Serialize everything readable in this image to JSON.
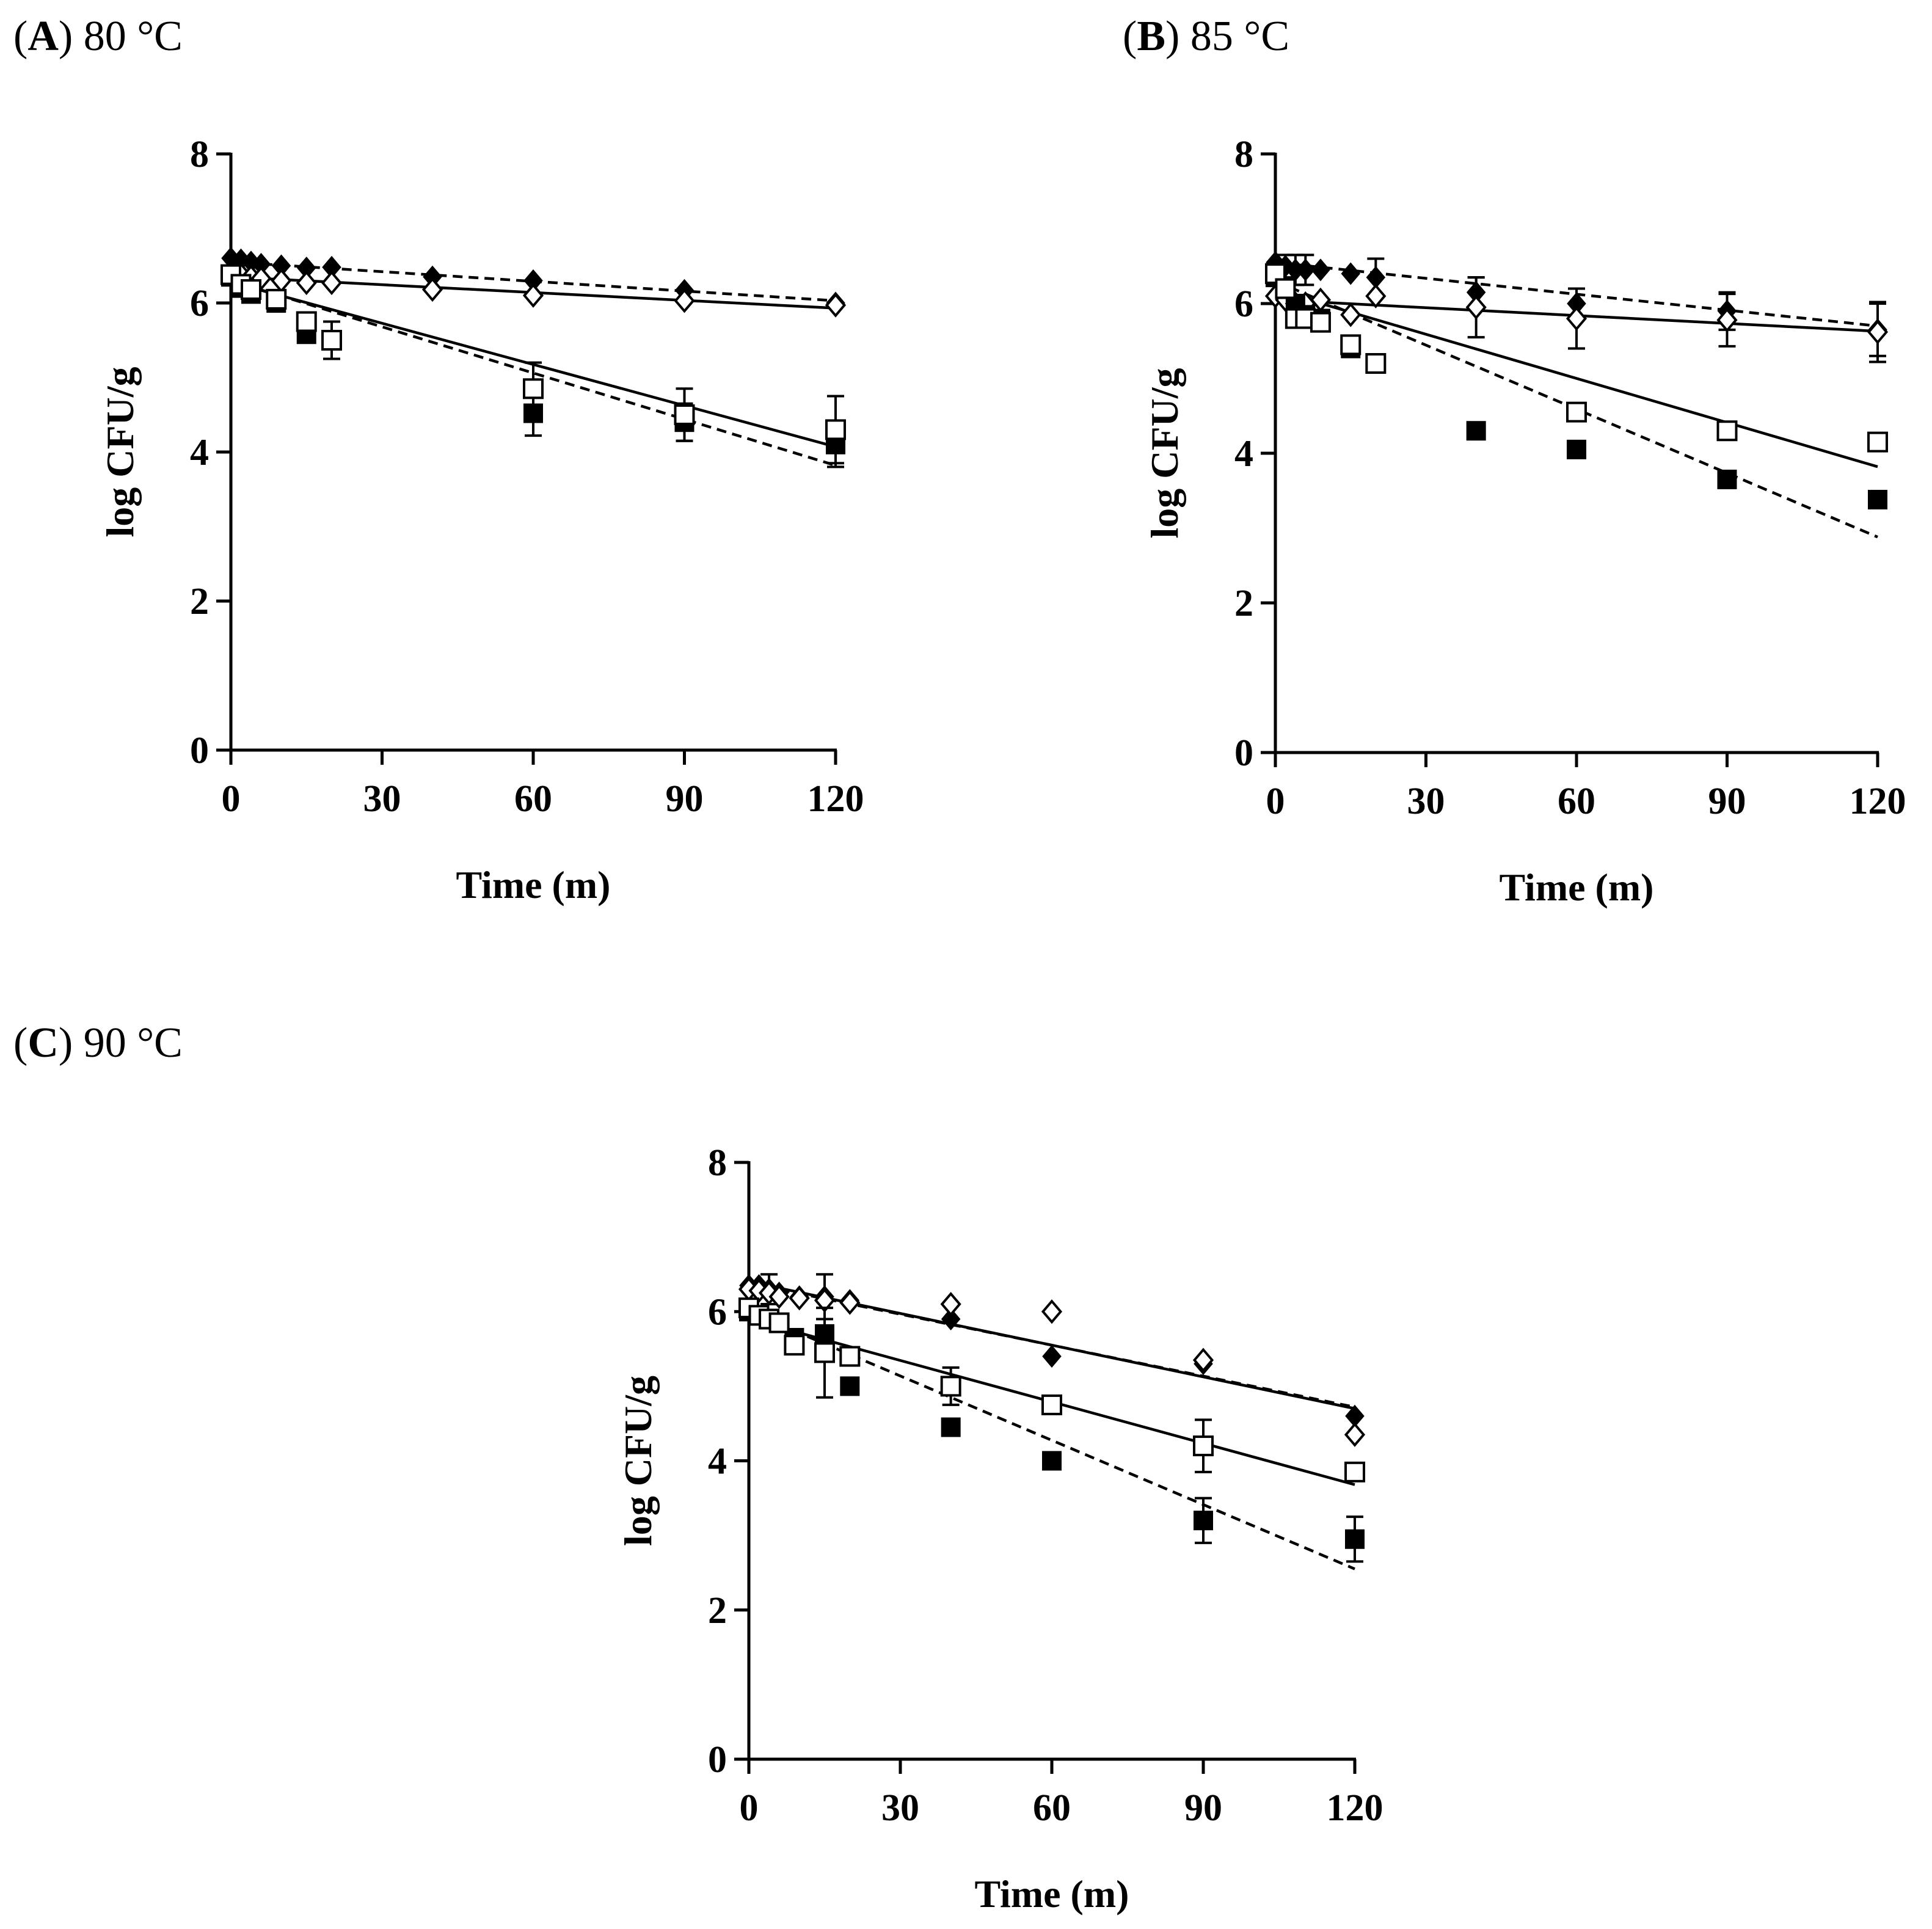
{
  "chart_data": [
    {
      "type": "scatter",
      "panel_letter": "A",
      "title": "80 °C",
      "xlabel": "Time (m)",
      "ylabel": "log CFU/g",
      "xlim": [
        0,
        120
      ],
      "ylim": [
        0,
        8
      ],
      "xticks": [
        0,
        30,
        60,
        90,
        120
      ],
      "yticks": [
        0,
        2,
        4,
        6,
        8
      ],
      "series": [
        {
          "name": "filled-diamond",
          "marker": "diamond-filled",
          "points": [
            [
              0,
              6.6
            ],
            [
              2,
              6.58
            ],
            [
              4,
              6.55
            ],
            [
              6,
              6.52
            ],
            [
              10,
              6.5
            ],
            [
              15,
              6.47
            ],
            [
              20,
              6.48
            ],
            [
              40,
              6.35
            ],
            [
              60,
              6.3
            ],
            [
              90,
              6.17
            ],
            [
              120,
              6.0
            ]
          ],
          "errors": [
            0,
            0,
            0,
            0,
            0,
            0,
            0,
            0,
            0,
            0,
            0
          ],
          "fit": [
            6.55,
            6.03
          ],
          "fit_style": "dashed"
        },
        {
          "name": "open-diamond",
          "marker": "diamond-open",
          "points": [
            [
              0,
              6.4
            ],
            [
              2,
              6.38
            ],
            [
              4,
              6.35
            ],
            [
              6,
              6.33
            ],
            [
              10,
              6.3
            ],
            [
              15,
              6.27
            ],
            [
              20,
              6.27
            ],
            [
              40,
              6.18
            ],
            [
              60,
              6.1
            ],
            [
              90,
              6.03
            ],
            [
              120,
              5.97
            ]
          ],
          "errors": [
            0,
            0,
            0,
            0,
            0,
            0,
            0,
            0,
            0,
            0,
            0
          ],
          "fit": [
            6.35,
            5.93
          ],
          "fit_style": "solid"
        },
        {
          "name": "filled-square",
          "marker": "square-filled",
          "points": [
            [
              0,
              6.35
            ],
            [
              2,
              6.2
            ],
            [
              4,
              6.12
            ],
            [
              9,
              6.0
            ],
            [
              15,
              5.58
            ],
            [
              60,
              4.52
            ],
            [
              90,
              4.4
            ],
            [
              120,
              4.1
            ]
          ],
          "errors": [
            0,
            0,
            0,
            0,
            0,
            0.3,
            0.25,
            0.3
          ],
          "fit": [
            6.3,
            3.82
          ],
          "fit_style": "dashed"
        },
        {
          "name": "open-square",
          "marker": "square-open",
          "points": [
            [
              0,
              6.38
            ],
            [
              2,
              6.25
            ],
            [
              4,
              6.18
            ],
            [
              9,
              6.05
            ],
            [
              15,
              5.75
            ],
            [
              20,
              5.5
            ],
            [
              60,
              4.85
            ],
            [
              90,
              4.5
            ],
            [
              120,
              4.3
            ]
          ],
          "errors": [
            0,
            0,
            0,
            0,
            0,
            0.25,
            0.35,
            0.35,
            0.45
          ],
          "fit": [
            6.28,
            4.07
          ],
          "fit_style": "solid"
        }
      ]
    },
    {
      "type": "scatter",
      "panel_letter": "B",
      "title": "85 °C",
      "xlabel": "Time (m)",
      "ylabel": "log CFU/g",
      "xlim": [
        0,
        120
      ],
      "ylim": [
        0,
        8
      ],
      "xticks": [
        0,
        30,
        60,
        90,
        120
      ],
      "yticks": [
        0,
        2,
        4,
        6,
        8
      ],
      "series": [
        {
          "name": "filled-diamond",
          "marker": "diamond-filled",
          "points": [
            [
              0,
              6.55
            ],
            [
              2,
              6.5
            ],
            [
              4,
              6.45
            ],
            [
              6,
              6.45
            ],
            [
              9,
              6.45
            ],
            [
              15,
              6.4
            ],
            [
              20,
              6.35
            ],
            [
              40,
              6.15
            ],
            [
              60,
              6.0
            ],
            [
              90,
              5.9
            ],
            [
              120,
              5.65
            ]
          ],
          "errors": [
            0,
            0.15,
            0.2,
            0.2,
            0,
            0,
            0.25,
            0.2,
            0.2,
            0.25,
            0.35
          ],
          "fit": [
            6.55,
            5.7
          ],
          "fit_style": "dashed"
        },
        {
          "name": "open-diamond",
          "marker": "diamond-open",
          "points": [
            [
              0,
              6.1
            ],
            [
              2,
              6.05
            ],
            [
              4,
              6.0
            ],
            [
              6,
              6.0
            ],
            [
              9,
              6.05
            ],
            [
              15,
              5.85
            ],
            [
              20,
              6.1
            ],
            [
              40,
              5.95
            ],
            [
              60,
              5.8
            ],
            [
              90,
              5.78
            ],
            [
              120,
              5.62
            ]
          ],
          "errors": [
            0,
            0,
            0,
            0,
            0,
            0,
            0,
            0.4,
            0.4,
            0.35,
            0.4
          ],
          "fit": [
            6.05,
            5.63
          ],
          "fit_style": "solid"
        },
        {
          "name": "filled-square",
          "marker": "square-filled",
          "points": [
            [
              0,
              6.35
            ],
            [
              2,
              6.2
            ],
            [
              4,
              6.0
            ],
            [
              6,
              5.85
            ],
            [
              9,
              5.8
            ],
            [
              15,
              5.4
            ],
            [
              20,
              5.2
            ],
            [
              40,
              4.3
            ],
            [
              60,
              4.05
            ],
            [
              90,
              3.65
            ],
            [
              120,
              3.38
            ]
          ],
          "errors": [
            0,
            0,
            0,
            0,
            0,
            0,
            0,
            0,
            0,
            0,
            0
          ],
          "fit": [
            6.3,
            2.88
          ],
          "fit_style": "dashed"
        },
        {
          "name": "open-square",
          "marker": "square-open",
          "points": [
            [
              0,
              6.4
            ],
            [
              2,
              6.2
            ],
            [
              4,
              5.8
            ],
            [
              6,
              5.8
            ],
            [
              9,
              5.75
            ],
            [
              15,
              5.45
            ],
            [
              20,
              5.2
            ],
            [
              60,
              4.55
            ],
            [
              90,
              4.3
            ],
            [
              120,
              4.15
            ]
          ],
          "errors": [
            0,
            0,
            0,
            0,
            0,
            0,
            0,
            0,
            0,
            0
          ],
          "fit": [
            6.18,
            3.82
          ],
          "fit_style": "solid"
        }
      ]
    },
    {
      "type": "scatter",
      "panel_letter": "C",
      "title": "90 °C",
      "xlabel": "Time (m)",
      "ylabel": "log CFU/g",
      "xlim": [
        0,
        120
      ],
      "ylim": [
        0,
        8
      ],
      "xticks": [
        0,
        30,
        60,
        90,
        120
      ],
      "yticks": [
        0,
        2,
        4,
        6,
        8
      ],
      "series": [
        {
          "name": "filled-diamond",
          "marker": "diamond-filled",
          "points": [
            [
              0,
              6.35
            ],
            [
              2,
              6.35
            ],
            [
              4,
              6.3
            ],
            [
              6,
              6.25
            ],
            [
              10,
              6.2
            ],
            [
              15,
              6.2
            ],
            [
              20,
              6.15
            ],
            [
              40,
              5.9
            ],
            [
              60,
              5.4
            ],
            [
              90,
              5.3
            ],
            [
              120,
              4.6
            ]
          ],
          "errors": [
            0,
            0,
            0.2,
            0,
            0,
            0.3,
            0,
            0,
            0,
            0,
            0
          ],
          "fit": [
            6.38,
            4.72
          ],
          "fit_style": "dashed"
        },
        {
          "name": "open-diamond",
          "marker": "diamond-open",
          "points": [
            [
              0,
              6.3
            ],
            [
              2,
              6.28
            ],
            [
              4,
              6.25
            ],
            [
              6,
              6.2
            ],
            [
              10,
              6.18
            ],
            [
              15,
              6.15
            ],
            [
              20,
              6.12
            ],
            [
              40,
              6.1
            ],
            [
              60,
              6.0
            ],
            [
              90,
              5.35
            ],
            [
              120,
              4.35
            ]
          ],
          "errors": [
            0,
            0,
            0,
            0,
            0,
            0,
            0,
            0,
            0,
            0,
            0
          ],
          "fit": [
            6.4,
            4.7
          ],
          "fit_style": "solid"
        },
        {
          "name": "filled-square",
          "marker": "square-filled",
          "points": [
            [
              0,
              6.0
            ],
            [
              2,
              5.95
            ],
            [
              4,
              5.9
            ],
            [
              6,
              5.85
            ],
            [
              9,
              5.65
            ],
            [
              15,
              5.7
            ],
            [
              20,
              5.0
            ],
            [
              40,
              4.45
            ],
            [
              60,
              4.0
            ],
            [
              90,
              3.2
            ],
            [
              120,
              2.95
            ]
          ],
          "errors": [
            0,
            0,
            0,
            0,
            0,
            0,
            0,
            0,
            0,
            0.3,
            0.3
          ],
          "fit": [
            6.0,
            2.55
          ],
          "fit_style": "dashed"
        },
        {
          "name": "open-square",
          "marker": "square-open",
          "points": [
            [
              0,
              6.05
            ],
            [
              2,
              5.95
            ],
            [
              4,
              5.9
            ],
            [
              6,
              5.85
            ],
            [
              9,
              5.55
            ],
            [
              15,
              5.45
            ],
            [
              20,
              5.4
            ],
            [
              40,
              5.0
            ],
            [
              60,
              4.75
            ],
            [
              90,
              4.2
            ],
            [
              120,
              3.85
            ]
          ],
          "errors": [
            0,
            0,
            0,
            0,
            0,
            0.6,
            0,
            0.25,
            0,
            0.35,
            0
          ],
          "fit": [
            5.9,
            3.68
          ],
          "fit_style": "solid"
        }
      ]
    }
  ]
}
